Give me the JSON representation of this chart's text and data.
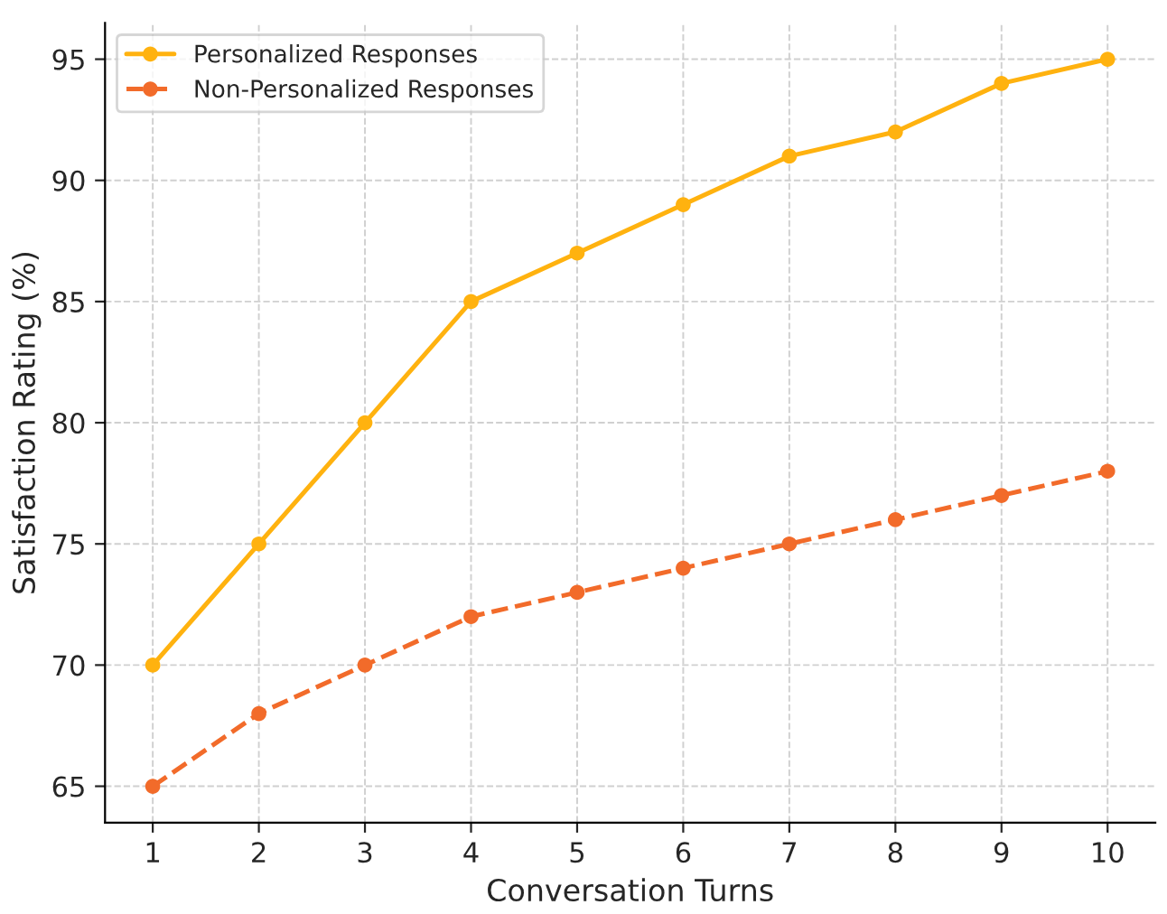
{
  "chart_data": {
    "type": "line",
    "xlabel": "Conversation Turns",
    "ylabel": "Satisfaction Rating (%)",
    "x": [
      1,
      2,
      3,
      4,
      5,
      6,
      7,
      8,
      9,
      10
    ],
    "series": [
      {
        "name": "Personalized Responses",
        "color": "#ffb20f",
        "line_style": "solid",
        "values": [
          70,
          75,
          80,
          85,
          87,
          89,
          91,
          92,
          94,
          95
        ]
      },
      {
        "name": "Non-Personalized Responses",
        "color": "#f26b2a",
        "line_style": "dashed",
        "values": [
          65,
          68,
          70,
          72,
          73,
          74,
          75,
          76,
          77,
          78
        ]
      }
    ],
    "xlim": [
      0.55,
      10.45
    ],
    "xticks": [
      1,
      2,
      3,
      4,
      5,
      6,
      7,
      8,
      9,
      10
    ],
    "ylim": [
      63.5,
      96.5
    ],
    "yticks": [
      65,
      70,
      75,
      80,
      85,
      90,
      95
    ],
    "grid": true,
    "legend": "top left",
    "marker": "circle"
  }
}
